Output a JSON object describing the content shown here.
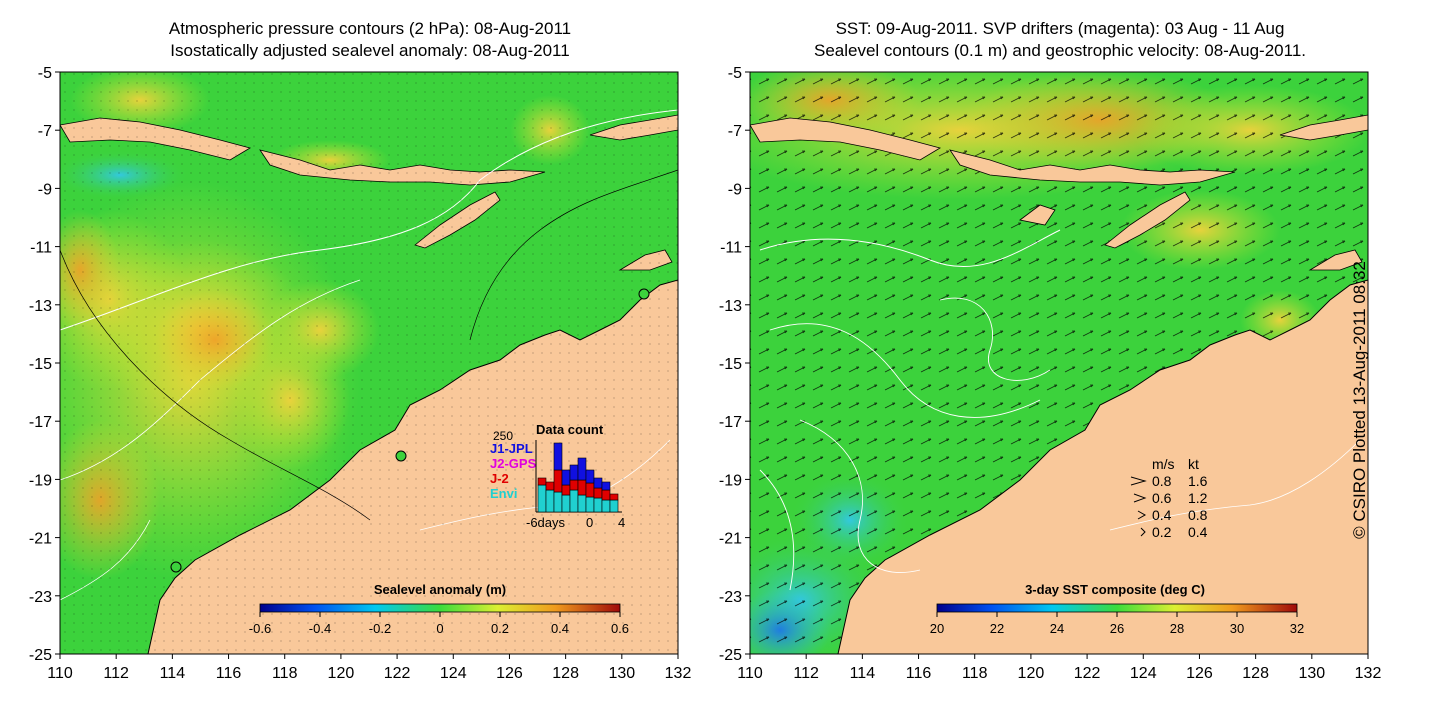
{
  "left_panel": {
    "title_line1": "Atmospheric pressure contours (2 hPa): 08-Aug-2011",
    "title_line2": "Isostatically adjusted sealevel anomaly: 08-Aug-2011",
    "colorbar_label": "Sealevel anomaly (m)",
    "colorbar_ticks": [
      "-0.6",
      "-0.4",
      "-0.2",
      "0",
      "0.2",
      "0.4",
      "0.6"
    ],
    "inset": {
      "title": "Data count",
      "ymax_label": "250",
      "legend": [
        {
          "label": "J1-JPL",
          "color": "#1010e0"
        },
        {
          "label": "J2-GPS",
          "color": "#e000e0"
        },
        {
          "label": "J-2",
          "color": "#e00000"
        },
        {
          "label": "Envi",
          "color": "#20d0d0"
        }
      ],
      "x_ticks": [
        "-6days",
        "0",
        "4"
      ]
    }
  },
  "right_panel": {
    "title_line1": "SST: 09-Aug-2011. SVP drifters (magenta): 03 Aug - 11 Aug",
    "title_line2": "Sealevel contours (0.1 m) and geostrophic velocity: 08-Aug-2011.",
    "colorbar_label": "3-day SST composite (deg C)",
    "colorbar_ticks": [
      "20",
      "22",
      "24",
      "26",
      "28",
      "30",
      "32"
    ],
    "velocity_legend": {
      "header_ms": "m/s",
      "header_kt": "kt",
      "rows": [
        {
          "ms": "0.8",
          "kt": "1.6"
        },
        {
          "ms": "0.6",
          "kt": "1.2"
        },
        {
          "ms": "0.4",
          "kt": "0.8"
        },
        {
          "ms": "0.2",
          "kt": "0.4"
        }
      ]
    }
  },
  "axes": {
    "y_ticks": [
      "-5",
      "-7",
      "-9",
      "-11",
      "-13",
      "-15",
      "-17",
      "-19",
      "-21",
      "-23",
      "-25"
    ],
    "x_ticks": [
      "110",
      "112",
      "114",
      "116",
      "118",
      "120",
      "122",
      "124",
      "126",
      "128",
      "130",
      "132"
    ]
  },
  "credit": "© CSIRO Plotted 13-Aug-2011 08:32",
  "colors": {
    "land": "#f9c89a",
    "ocean_green": "#3cd23c",
    "ocean_yellow": "#c8e632",
    "ocean_orange": "#f0b432",
    "ocean_cyan": "#32c8d2"
  }
}
